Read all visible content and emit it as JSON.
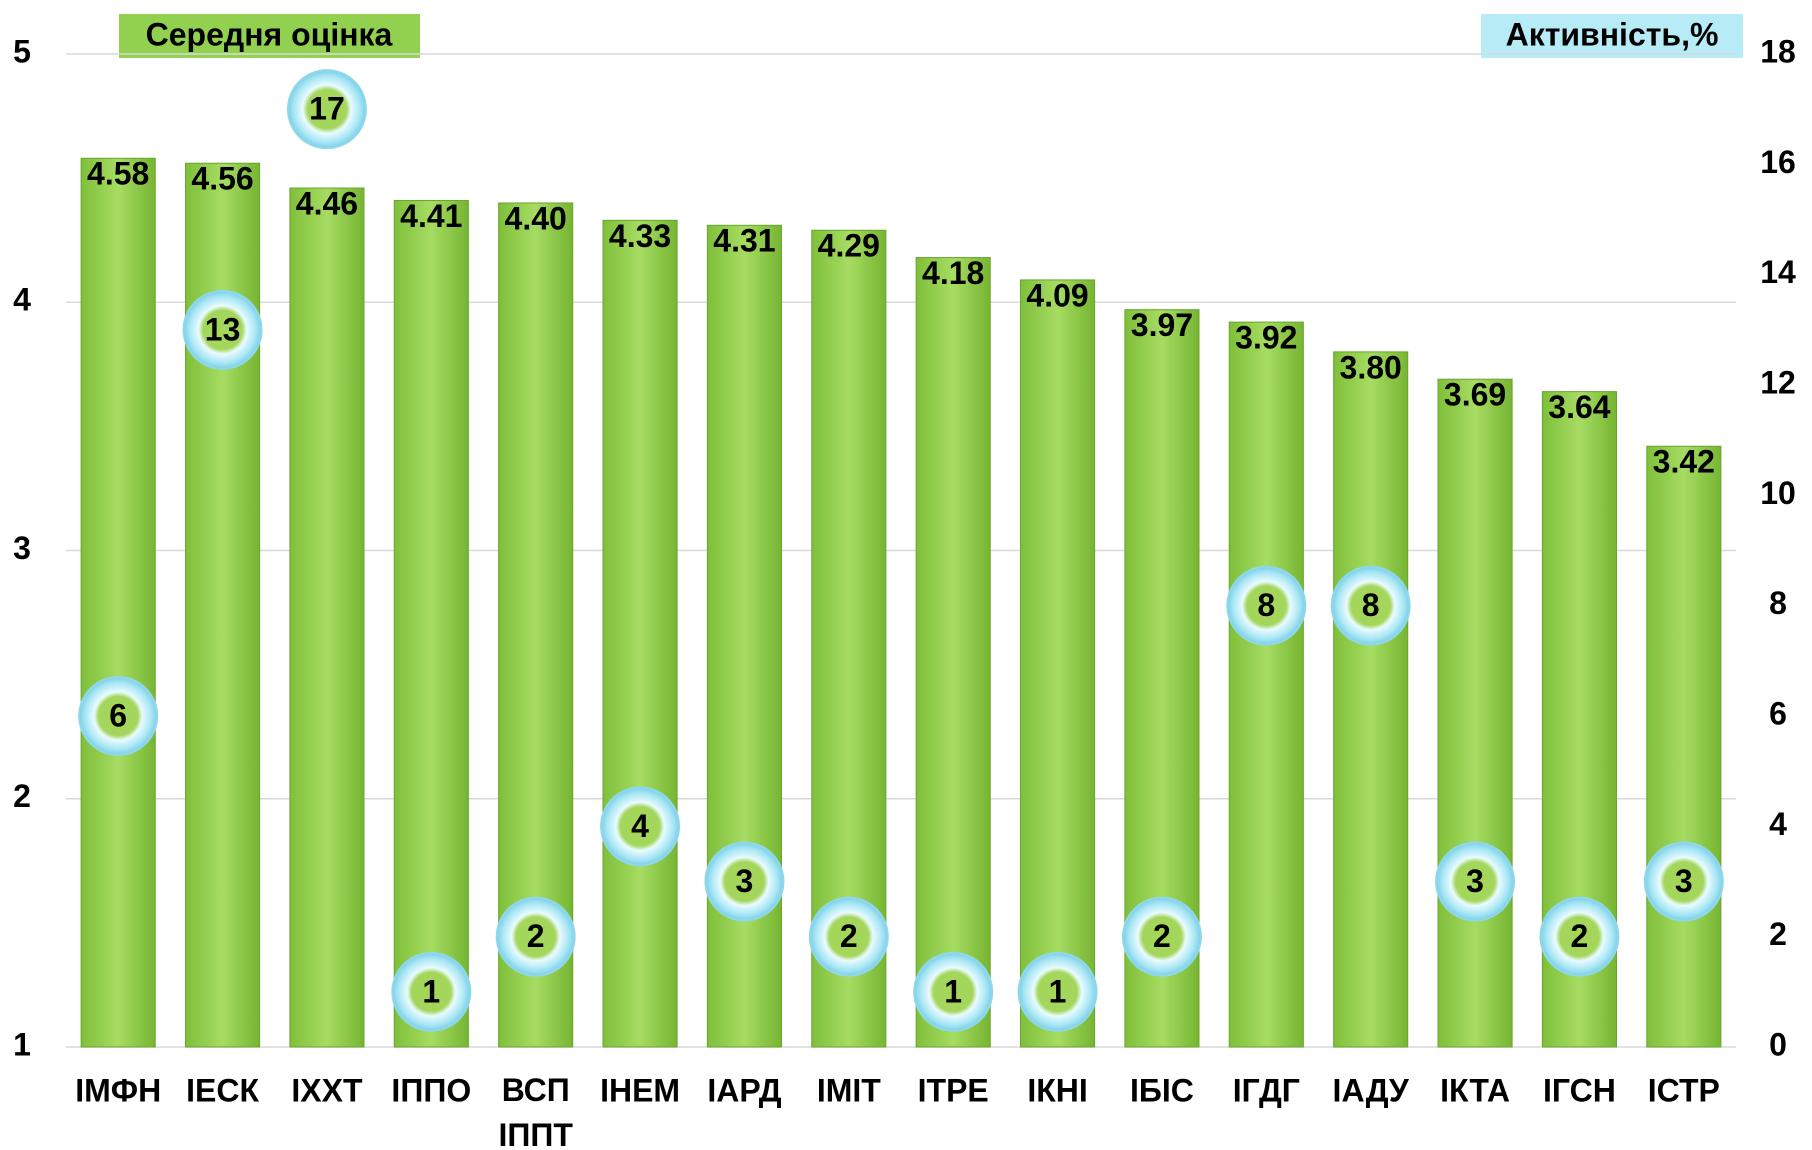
{
  "chart_data": {
    "type": "bar",
    "categories": [
      "ІМФН",
      "ІЕСК",
      "ІХХТ",
      "ІППО",
      "ВСП ІППТ",
      "ІНЕМ",
      "ІАРД",
      "ІМІТ",
      "ІТРЕ",
      "ІКНІ",
      "ІБІС",
      "ІГДГ",
      "ІАДУ",
      "ІКТА",
      "ІГСН",
      "ІСТР"
    ],
    "series": [
      {
        "name": "Середня оцінка",
        "color": "#92d050",
        "values": [
          4.58,
          4.56,
          4.46,
          4.41,
          4.4,
          4.33,
          4.31,
          4.29,
          4.18,
          4.09,
          3.97,
          3.92,
          3.8,
          3.69,
          3.64,
          3.42
        ],
        "value_labels": [
          "4.58",
          "4.56",
          "4.46",
          "4.41",
          "4.40",
          "4.33",
          "4.31",
          "4.29",
          "4.18",
          "4.09",
          "3.97",
          "3.92",
          "3.80",
          "3.69",
          "3.64",
          "3.42"
        ]
      },
      {
        "name": "Активність,%",
        "color": "#b7ecf7",
        "axis": "y2",
        "values": [
          6,
          13,
          17,
          1,
          2,
          4,
          3,
          2,
          1,
          1,
          2,
          8,
          8,
          3,
          2,
          3
        ]
      }
    ],
    "ylim": [
      1,
      5
    ],
    "yticks": [
      1,
      2,
      3,
      4,
      5
    ],
    "y2lim": [
      0,
      18
    ],
    "y2ticks": [
      0,
      2,
      4,
      6,
      8,
      10,
      12,
      14,
      16,
      18
    ],
    "grid": true
  }
}
